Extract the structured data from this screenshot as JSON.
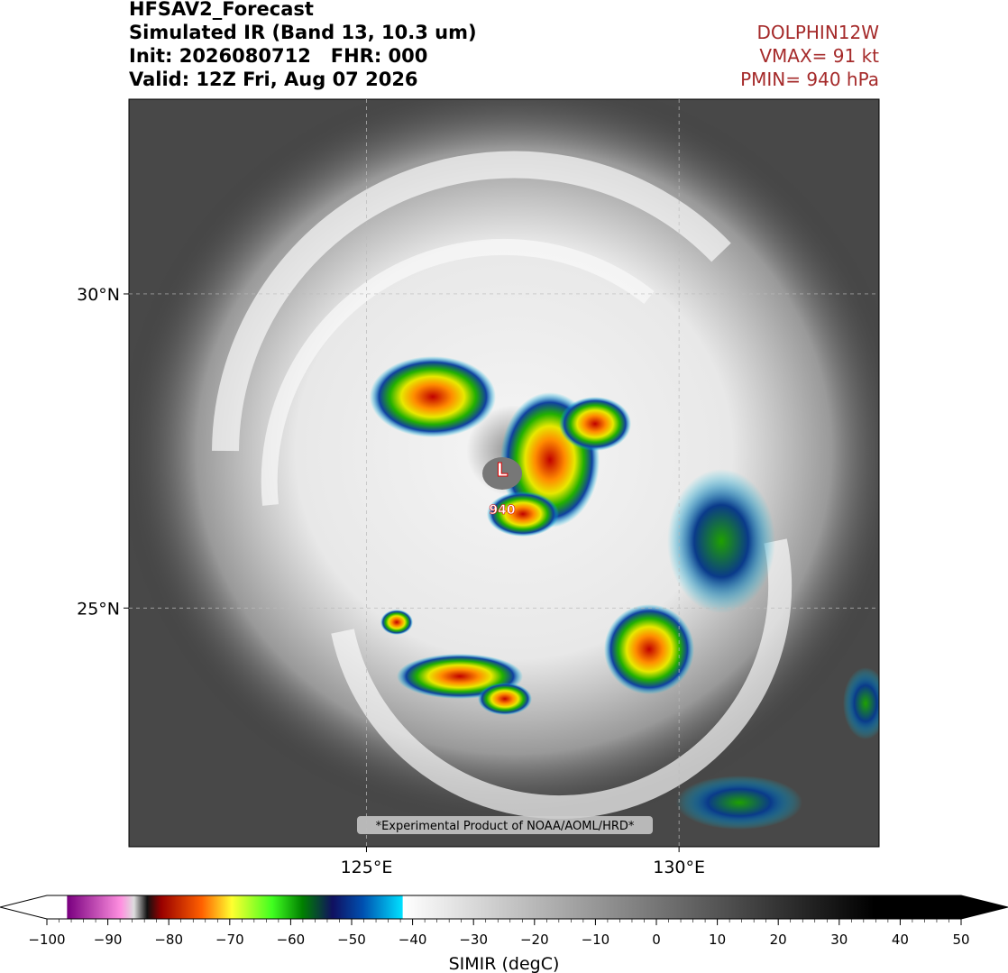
{
  "header": {
    "title": "HFSAV2_Forecast",
    "product": "Simulated IR (Band 13, 10.3 um)",
    "init": "Init: 2026080712   FHR: 000",
    "valid": "Valid: 12Z Fri, Aug 07 2026"
  },
  "storm": {
    "name": "DOLPHIN12W",
    "vmax": "VMAX= 91 kt",
    "pmin": "PMIN= 940 hPa",
    "center_label": "L",
    "pressure_label": "940"
  },
  "map": {
    "lon_range": [
      121.2,
      133.2
    ],
    "lat_range": [
      21.2,
      33.1
    ],
    "lat_ticks": [
      {
        "value": 30,
        "label": "30°N"
      },
      {
        "value": 25,
        "label": "25°N"
      }
    ],
    "lon_ticks": [
      {
        "value": 125,
        "label": "125°E"
      },
      {
        "value": 130,
        "label": "130°E"
      }
    ],
    "credit": "*Experimental Product of NOAA/AOML/HRD*"
  },
  "colorbar": {
    "range": [
      -100,
      50
    ],
    "label": "SIMIR (degC)",
    "ticks": [
      {
        "value": -100,
        "label": "−100"
      },
      {
        "value": -90,
        "label": "−90"
      },
      {
        "value": -80,
        "label": "−80"
      },
      {
        "value": -70,
        "label": "−70"
      },
      {
        "value": -60,
        "label": "−60"
      },
      {
        "value": -50,
        "label": "−50"
      },
      {
        "value": -40,
        "label": "−40"
      },
      {
        "value": -30,
        "label": "−30"
      },
      {
        "value": -20,
        "label": "−20"
      },
      {
        "value": -10,
        "label": "−10"
      },
      0,
      10,
      20,
      30,
      40,
      50
    ]
  }
}
